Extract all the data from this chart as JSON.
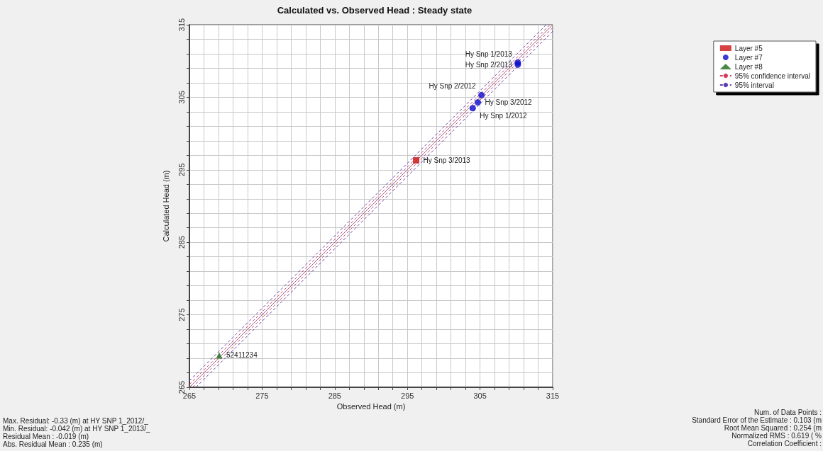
{
  "chart_data": {
    "type": "scatter",
    "title": "Calculated vs. Observed Head : Steady state",
    "xlabel": "Observed Head (m)",
    "ylabel": "Calculated Head (m)",
    "xlim": [
      265,
      315
    ],
    "ylim": [
      265,
      315
    ],
    "xticks": [
      265,
      {
        "value": 267,
        "label": null
      },
      {
        "value": 269,
        "label": null
      },
      {
        "value": 271,
        "label": null
      },
      {
        "value": 273,
        "label": null
      },
      275,
      {
        "value": 277,
        "label": null
      },
      {
        "value": 279,
        "label": null
      },
      {
        "value": 281,
        "label": null
      },
      {
        "value": 283,
        "label": null
      },
      285,
      {
        "value": 287,
        "label": null
      },
      {
        "value": 289,
        "label": null
      },
      {
        "value": 291,
        "label": null
      },
      {
        "value": 293,
        "label": null
      },
      295,
      {
        "value": 297,
        "label": null
      },
      {
        "value": 299,
        "label": null
      },
      {
        "value": 301,
        "label": null
      },
      {
        "value": 303,
        "label": null
      },
      305,
      {
        "value": 307,
        "label": null
      },
      {
        "value": 309,
        "label": null
      },
      {
        "value": 311,
        "label": null
      },
      {
        "value": 313,
        "label": null
      },
      315
    ],
    "yticks": [
      265,
      {
        "value": 267,
        "label": null
      },
      {
        "value": 269,
        "label": null
      },
      {
        "value": 271,
        "label": null
      },
      {
        "value": 273,
        "label": null
      },
      275,
      {
        "value": 277,
        "label": null
      },
      {
        "value": 279,
        "label": null
      },
      {
        "value": 281,
        "label": null
      },
      {
        "value": 283,
        "label": null
      },
      285,
      {
        "value": 287,
        "label": null
      },
      {
        "value": 289,
        "label": null
      },
      {
        "value": 291,
        "label": null
      },
      {
        "value": 293,
        "label": null
      },
      295,
      {
        "value": 297,
        "label": null
      },
      {
        "value": 299,
        "label": null
      },
      {
        "value": 301,
        "label": null
      },
      {
        "value": 303,
        "label": null
      },
      305,
      {
        "value": 307,
        "label": null
      },
      {
        "value": 309,
        "label": null
      },
      {
        "value": 311,
        "label": null
      },
      {
        "value": 313,
        "label": null
      },
      315
    ],
    "grid": true,
    "legend": "top right",
    "series": [
      {
        "name": "Layer #5",
        "marker": "square",
        "color": "#cc1111",
        "x": [
          296.2
        ],
        "values": [
          296.3
        ]
      },
      {
        "name": "Layer #7",
        "marker": "circle",
        "color": "#0a0acc",
        "x": [
          310.2,
          310.2,
          305.2,
          304.7,
          304.0
        ],
        "values": [
          309.8,
          309.5,
          305.3,
          304.3,
          303.5
        ]
      },
      {
        "name": "Layer #8",
        "marker": "triangle",
        "color": "#1a6b1a",
        "x": [
          269.1
        ],
        "values": [
          269.4
        ]
      },
      {
        "type": "line",
        "marker": "none",
        "line_style": "solid",
        "color": "#a06090",
        "x": [
          265,
          315
        ],
        "values": [
          265,
          315
        ]
      },
      {
        "name": "95% confidence interval",
        "type": "line",
        "marker": "none",
        "line_style": "dashed",
        "color": "#d04060",
        "x": [
          265,
          314.6,
          null,
          265.4,
          315
        ],
        "values": [
          265.4,
          315,
          null,
          265,
          314.6
        ]
      },
      {
        "name": "95% interval",
        "type": "line",
        "marker": "none",
        "line_style": "dashed",
        "color": "#6040b0",
        "x": [
          265,
          314.1,
          null,
          265.9,
          315
        ],
        "values": [
          265.9,
          315,
          null,
          265,
          314.1
        ]
      }
    ],
    "annotations": [
      {
        "text": "Hy Snp 1/2013",
        "x": 310.2,
        "y": 309.8
      },
      {
        "text": "Hy Snp 2/2013",
        "x": 310.2,
        "y": 309.5
      },
      {
        "text": "Hy Snp 2/2012",
        "x": 305.2,
        "y": 305.3
      },
      {
        "text": "Hy Snp 3/2012",
        "x": 304.7,
        "y": 304.3
      },
      {
        "text": "Hy Snp 1/2012",
        "x": 304.0,
        "y": 303.5
      },
      {
        "text": "Hy Snp 3/2013",
        "x": 296.2,
        "y": 296.3
      },
      {
        "text": "52411234",
        "x": 269.1,
        "y": 269.4
      },
      "Max. Residual: -0.33 (m) at HY SNP 1_2012/_",
      "Min. Residual: -0.042 (m) at HY SNP 1_2013/_",
      "Residual Mean : -0.019 (m)",
      "Abs. Residual Mean : 0.235 (m)",
      "Num. of Data Points :",
      "Standard Error of the Estimate : 0.103 (m",
      "Root Mean Squared : 0.254 (m",
      "Normalized RMS : 0.619 ( %",
      "Correlation Coefficient :"
    ]
  }
}
